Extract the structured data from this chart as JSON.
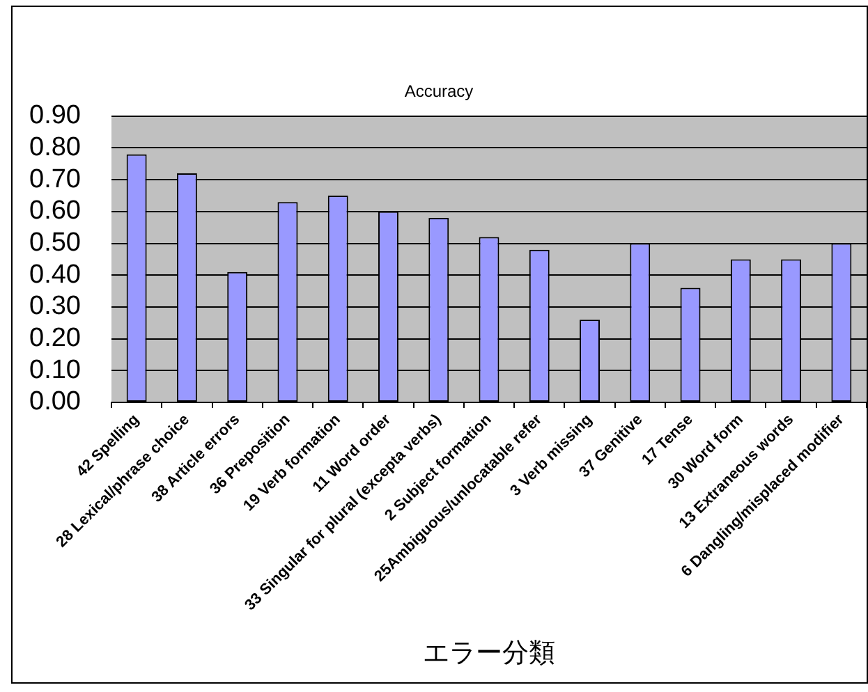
{
  "chart_data": {
    "type": "bar",
    "title": "Accuracy",
    "xlabel": "エラー分類",
    "categories": [
      "42 Spelling",
      "28 Lexical/phrase choice",
      "38 Article errors",
      "36 Preposition",
      "19 Verb formation",
      "11 Word order",
      "33 Singular for plural (excepta verbs)",
      "2 Subject formation",
      "25Ambiguous/unlocatable refer",
      "3 Verb missing",
      "37 Genitive",
      "17 Tense",
      "30 Word form",
      "13 Extraneous words",
      "6 Dangling/misplaced modifier"
    ],
    "values": [
      0.78,
      0.72,
      0.41,
      0.63,
      0.65,
      0.6,
      0.58,
      0.52,
      0.48,
      0.26,
      0.5,
      0.36,
      0.45,
      0.45,
      0.5
    ],
    "color": "#9999ff",
    "ylim": [
      0,
      0.9
    ],
    "yticks": [
      {
        "value": 0,
        "label": "0.00"
      },
      {
        "value": 0.1,
        "label": "0.10"
      },
      {
        "value": 0.2,
        "label": "0.20"
      },
      {
        "value": 0.3,
        "label": "0.30"
      },
      {
        "value": 0.4,
        "label": "0.40"
      },
      {
        "value": 0.5,
        "label": "0.50"
      },
      {
        "value": 0.6,
        "label": "0.60"
      },
      {
        "value": 0.7,
        "label": "0.70"
      },
      {
        "value": 0.8,
        "label": "0.80"
      },
      {
        "value": 0.9,
        "label": "0.90"
      }
    ],
    "grid": "y"
  }
}
